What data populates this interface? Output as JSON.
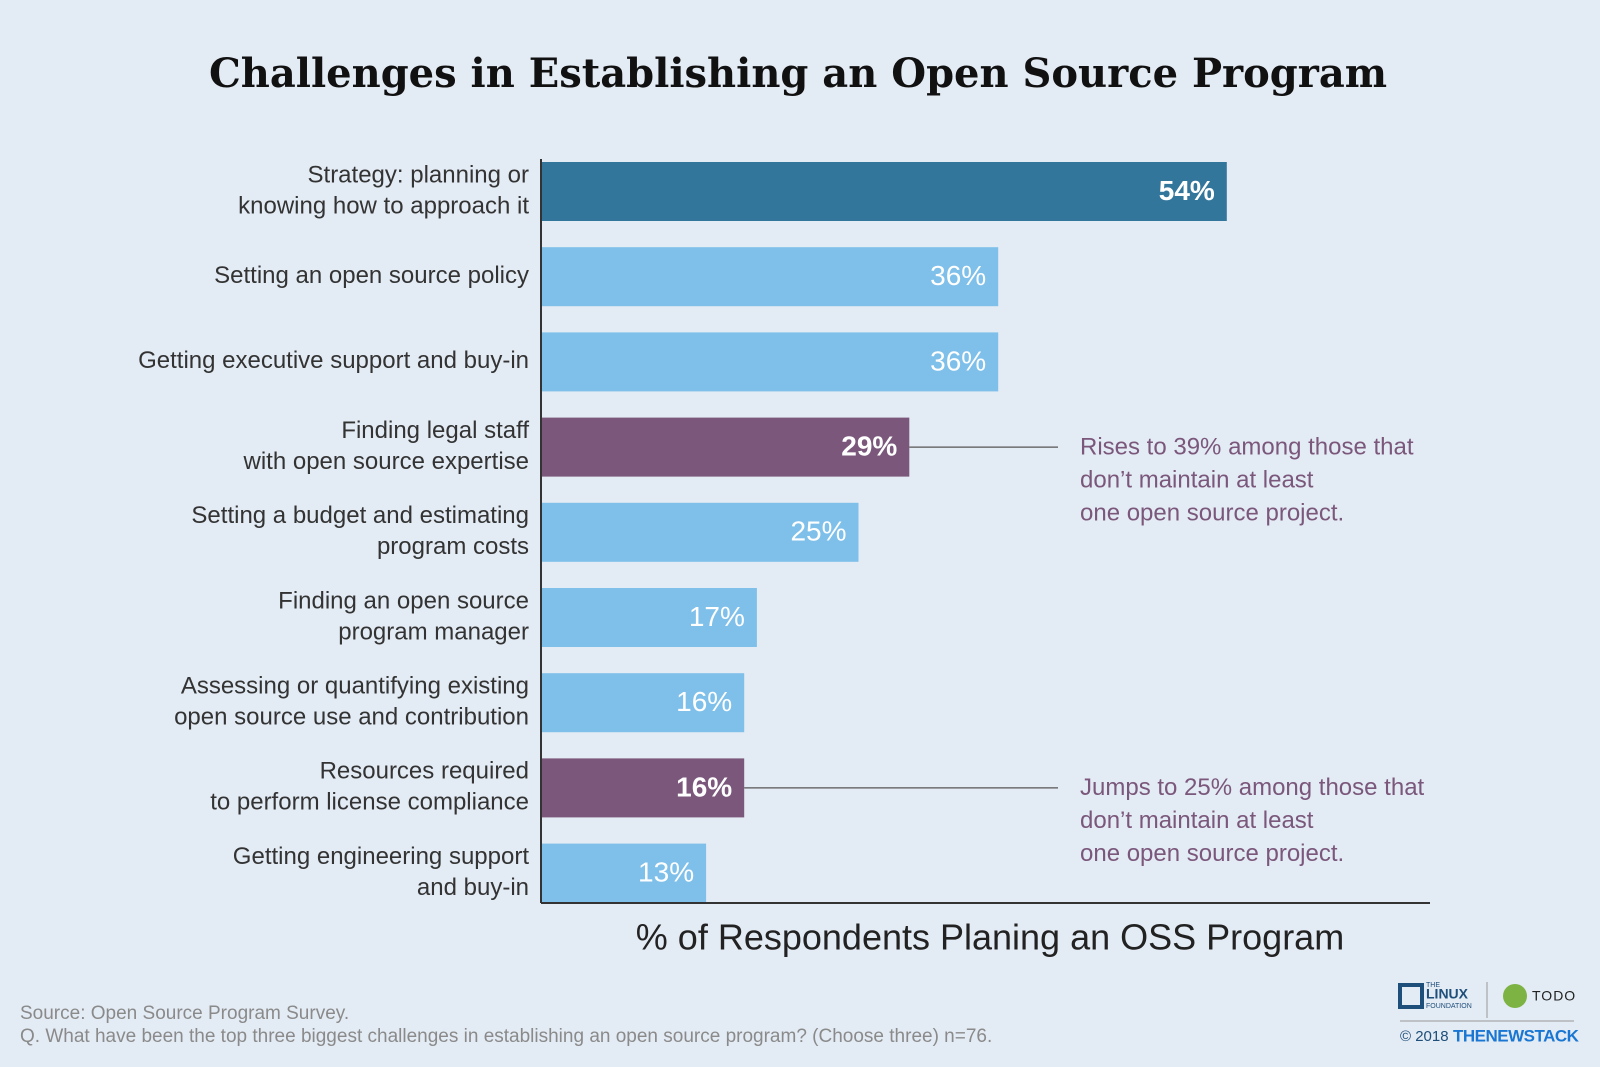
{
  "chart_data": {
    "type": "hbar",
    "title": "Challenges in Establishing an Open Source Program",
    "categories": [
      [
        "Strategy: planning or",
        "knowing how to approach it"
      ],
      [
        "Setting an open source policy"
      ],
      [
        "Getting executive support and buy-in"
      ],
      [
        "Finding legal staff",
        "with open source expertise"
      ],
      [
        "Setting a budget and estimating",
        "program costs"
      ],
      [
        "Finding an open source",
        "program manager"
      ],
      [
        "Assessing or quantifying existing",
        "open source use and contribution"
      ],
      [
        "Resources required",
        "to perform license compliance"
      ],
      [
        "Getting engineering support",
        "and buy-in"
      ]
    ],
    "values": [
      54,
      36,
      36,
      29,
      25,
      17,
      16,
      16,
      13
    ],
    "value_labels": [
      "54%",
      "36%",
      "36%",
      "29%",
      "25%",
      "17%",
      "16%",
      "16%",
      "13%"
    ],
    "color": "#7fc0ea",
    "colors": [
      "#33769c",
      "#7fc0ea",
      "#7fc0ea",
      "#7a577b",
      "#7fc0ea",
      "#7fc0ea",
      "#7fc0ea",
      "#7a577b",
      "#7fc0ea"
    ],
    "xlim": [
      0,
      70
    ],
    "xlabel": "% of Respondents Planing an OSS Program",
    "annotations": [
      {
        "text": [
          "Rises to 39% among those that",
          "don’t maintain at least",
          "one open source project."
        ]
      },
      {
        "text": [
          "Jumps to 25% among those that",
          "don’t maintain at least",
          "one open source project."
        ]
      }
    ],
    "source": "Source: Open Source Program Survey.",
    "note": "Q. What have been the top three biggest challenges in establishing an open source program? (Choose three) n=76."
  },
  "branding": {
    "linux": [
      "THE",
      "LINUX",
      "FOUNDATION"
    ],
    "todo": "TODO",
    "copyright": "© 2018",
    "stack": "THENEWSTACK"
  }
}
